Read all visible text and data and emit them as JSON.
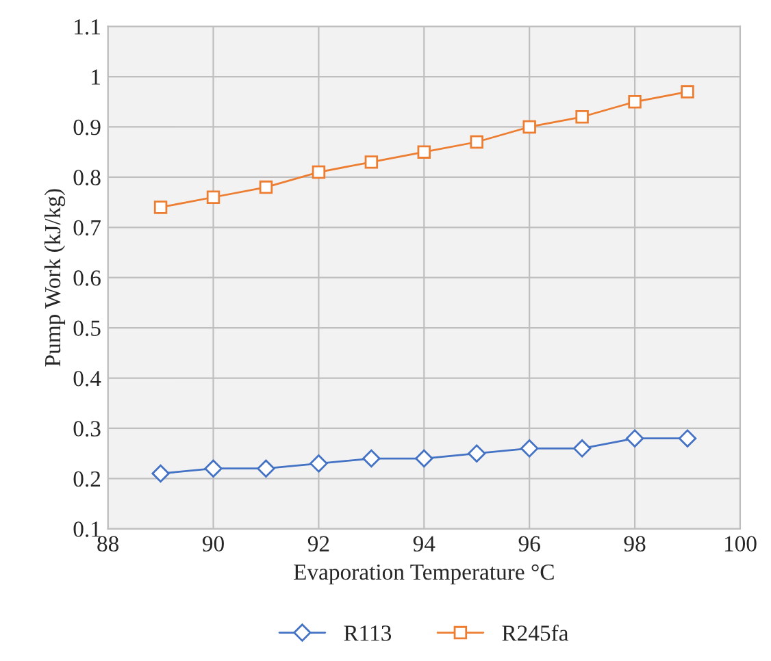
{
  "chart_data": {
    "type": "line",
    "xlabel": "Evaporation Temperature °C",
    "ylabel": "Pump Work (kJ/kg)",
    "x": [
      89,
      90,
      91,
      92,
      93,
      94,
      95,
      96,
      97,
      98,
      99
    ],
    "series": [
      {
        "name": "R113",
        "color": "#4472c4",
        "marker": "diamond",
        "values": [
          0.21,
          0.22,
          0.22,
          0.23,
          0.24,
          0.24,
          0.25,
          0.26,
          0.26,
          0.28,
          0.28
        ]
      },
      {
        "name": "R245fa",
        "color": "#ed7d31",
        "marker": "square",
        "values": [
          0.74,
          0.76,
          0.78,
          0.81,
          0.83,
          0.85,
          0.87,
          0.9,
          0.92,
          0.95,
          0.97
        ]
      }
    ],
    "xlim": [
      88,
      100
    ],
    "xticks": [
      88,
      90,
      92,
      94,
      96,
      98,
      100
    ],
    "ylim": [
      0.1,
      1.1
    ],
    "yticks": [
      0.1,
      0.2,
      0.3,
      0.4,
      0.5,
      0.6,
      0.7,
      0.8,
      0.9,
      1,
      1.1
    ],
    "grid": true,
    "legend": "bottom",
    "line_style": "solid"
  }
}
